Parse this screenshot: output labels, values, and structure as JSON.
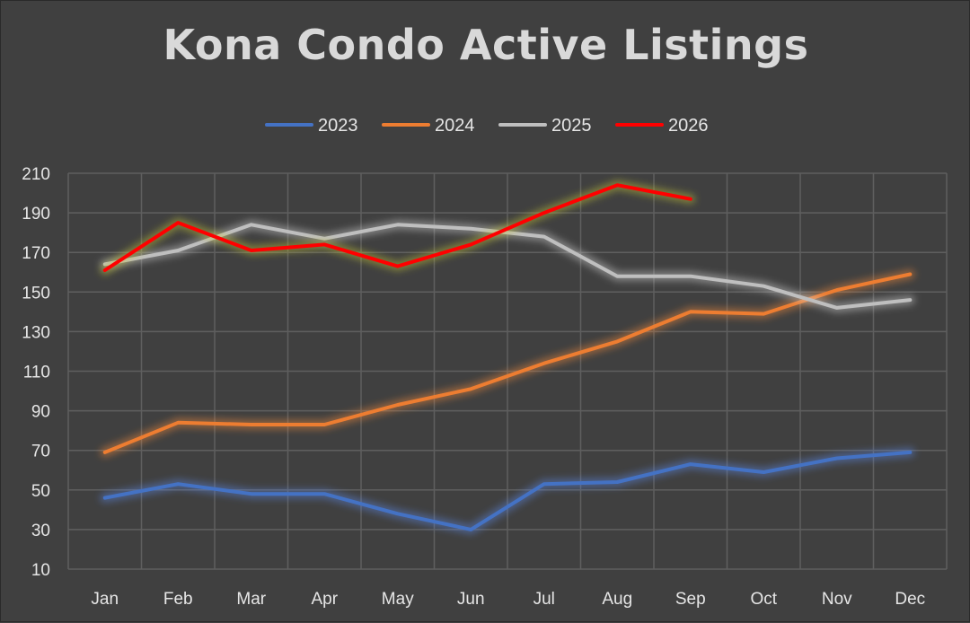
{
  "chart_data": {
    "type": "line",
    "title": "Kona Condo Active Listings",
    "xlabel": "",
    "ylabel": "",
    "categories": [
      "Jan",
      "Feb",
      "Mar",
      "Apr",
      "May",
      "Jun",
      "Jul",
      "Aug",
      "Sep",
      "Oct",
      "Nov",
      "Dec"
    ],
    "ylim": [
      10,
      210
    ],
    "yticks": [
      10,
      30,
      50,
      70,
      90,
      110,
      130,
      150,
      170,
      190,
      210
    ],
    "grid": true,
    "legend_position": "top-center",
    "series": [
      {
        "name": "2023",
        "color": "#4472C4",
        "glow": "#5a86e0",
        "values": [
          46,
          53,
          48,
          48,
          38,
          30,
          53,
          54,
          63,
          59,
          66,
          69
        ]
      },
      {
        "name": "2024",
        "color": "#ED7D31",
        "glow": "#f28a3a",
        "values": [
          69,
          84,
          83,
          83,
          93,
          101,
          114,
          125,
          140,
          139,
          151,
          159
        ]
      },
      {
        "name": "2025",
        "color": "#BFBFBF",
        "glow": "#d0d0d0",
        "values": [
          164,
          171,
          184,
          177,
          184,
          182,
          178,
          158,
          158,
          153,
          142,
          146
        ]
      },
      {
        "name": "2026",
        "color": "#FF0000",
        "glow": "#c8c832",
        "values": [
          161,
          185,
          171,
          174,
          163,
          174,
          190,
          204,
          197,
          null,
          null,
          null
        ]
      }
    ]
  }
}
